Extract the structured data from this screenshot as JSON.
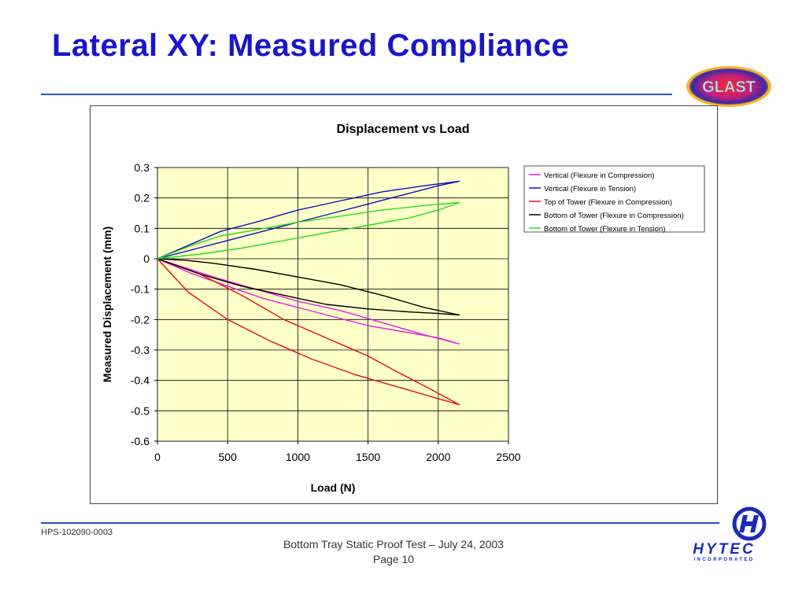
{
  "slide": {
    "title": "Lateral XY: Measured Compliance",
    "doc_number": "HPS-102090-0003",
    "footer_line1": "Bottom Tray Static Proof Test – July 24, 2003",
    "footer_line2": "Page 10",
    "rule_color": "#2b50c8",
    "title_color": "#1a16c8"
  },
  "logos": {
    "glast": {
      "text": "GLAST",
      "icon": "glast-logo"
    },
    "hytec": {
      "text": "HYTEC",
      "subtext": "INCORPORATED",
      "icon": "hytec-logo"
    }
  },
  "chart_data": {
    "type": "line",
    "title": "Displacement vs Load",
    "xlabel": "Load (N)",
    "ylabel": "Measured Displacement (mm)",
    "xlim": [
      0,
      2500
    ],
    "ylim": [
      -0.6,
      0.3
    ],
    "xticks": [
      0,
      500,
      1000,
      1500,
      2000,
      2500
    ],
    "yticks": [
      0.3,
      0.2,
      0.1,
      0,
      -0.1,
      -0.2,
      -0.3,
      -0.4,
      -0.5,
      -0.6
    ],
    "grid": true,
    "plot_background": "#ffffc8",
    "legend_position": "right",
    "series": [
      {
        "name": "Vertical (Flexure in Compression)",
        "color": "#e61ee6",
        "points": [
          [
            0,
            0
          ],
          [
            250,
            -0.05
          ],
          [
            500,
            -0.09
          ],
          [
            750,
            -0.13
          ],
          [
            1000,
            -0.16
          ],
          [
            1250,
            -0.19
          ],
          [
            1500,
            -0.22
          ],
          [
            1750,
            -0.24
          ],
          [
            2000,
            -0.26
          ],
          [
            2150,
            -0.28
          ],
          [
            1900,
            -0.25
          ],
          [
            1600,
            -0.21
          ],
          [
            1300,
            -0.17
          ],
          [
            1000,
            -0.14
          ],
          [
            700,
            -0.1
          ],
          [
            400,
            -0.06
          ],
          [
            200,
            -0.03
          ],
          [
            0,
            0
          ]
        ]
      },
      {
        "name": "Vertical (Flexure in Tension)",
        "color": "#1010c0",
        "points": [
          [
            0,
            0
          ],
          [
            250,
            0.03
          ],
          [
            500,
            0.06
          ],
          [
            750,
            0.09
          ],
          [
            1000,
            0.12
          ],
          [
            1250,
            0.15
          ],
          [
            1500,
            0.18
          ],
          [
            1750,
            0.21
          ],
          [
            2000,
            0.24
          ],
          [
            2150,
            0.255
          ],
          [
            1900,
            0.24
          ],
          [
            1600,
            0.22
          ],
          [
            1300,
            0.19
          ],
          [
            1000,
            0.16
          ],
          [
            700,
            0.12
          ],
          [
            450,
            0.09
          ],
          [
            250,
            0.05
          ],
          [
            0,
            0
          ]
        ]
      },
      {
        "name": "Top of Tower (Flexure in Compression)",
        "color": "#e01010",
        "points": [
          [
            0,
            0
          ],
          [
            220,
            -0.11
          ],
          [
            500,
            -0.2
          ],
          [
            800,
            -0.27
          ],
          [
            1100,
            -0.33
          ],
          [
            1400,
            -0.38
          ],
          [
            1700,
            -0.42
          ],
          [
            2000,
            -0.46
          ],
          [
            2150,
            -0.48
          ],
          [
            1950,
            -0.43
          ],
          [
            1700,
            -0.37
          ],
          [
            1500,
            -0.32
          ],
          [
            1200,
            -0.26
          ],
          [
            900,
            -0.2
          ],
          [
            600,
            -0.12
          ],
          [
            300,
            -0.05
          ],
          [
            0,
            0
          ]
        ]
      },
      {
        "name": "Bottom of Tower (Flexure in Compression)",
        "color": "#000000",
        "points": [
          [
            0,
            0
          ],
          [
            300,
            -0.05
          ],
          [
            600,
            -0.09
          ],
          [
            900,
            -0.12
          ],
          [
            1200,
            -0.15
          ],
          [
            1500,
            -0.165
          ],
          [
            1800,
            -0.175
          ],
          [
            2000,
            -0.18
          ],
          [
            2150,
            -0.185
          ],
          [
            1900,
            -0.16
          ],
          [
            1600,
            -0.12
          ],
          [
            1300,
            -0.085
          ],
          [
            1000,
            -0.06
          ],
          [
            700,
            -0.035
          ],
          [
            400,
            -0.015
          ],
          [
            200,
            -0.005
          ],
          [
            0,
            0
          ]
        ]
      },
      {
        "name": "Bottom of Tower (Flexure in Tension)",
        "color": "#22dd22",
        "points": [
          [
            0,
            0
          ],
          [
            300,
            0.015
          ],
          [
            600,
            0.035
          ],
          [
            900,
            0.06
          ],
          [
            1200,
            0.085
          ],
          [
            1500,
            0.11
          ],
          [
            1800,
            0.135
          ],
          [
            2000,
            0.16
          ],
          [
            2150,
            0.185
          ],
          [
            1900,
            0.175
          ],
          [
            1600,
            0.16
          ],
          [
            1300,
            0.14
          ],
          [
            1000,
            0.12
          ],
          [
            700,
            0.095
          ],
          [
            450,
            0.075
          ],
          [
            250,
            0.045
          ],
          [
            0,
            0
          ]
        ]
      }
    ]
  }
}
